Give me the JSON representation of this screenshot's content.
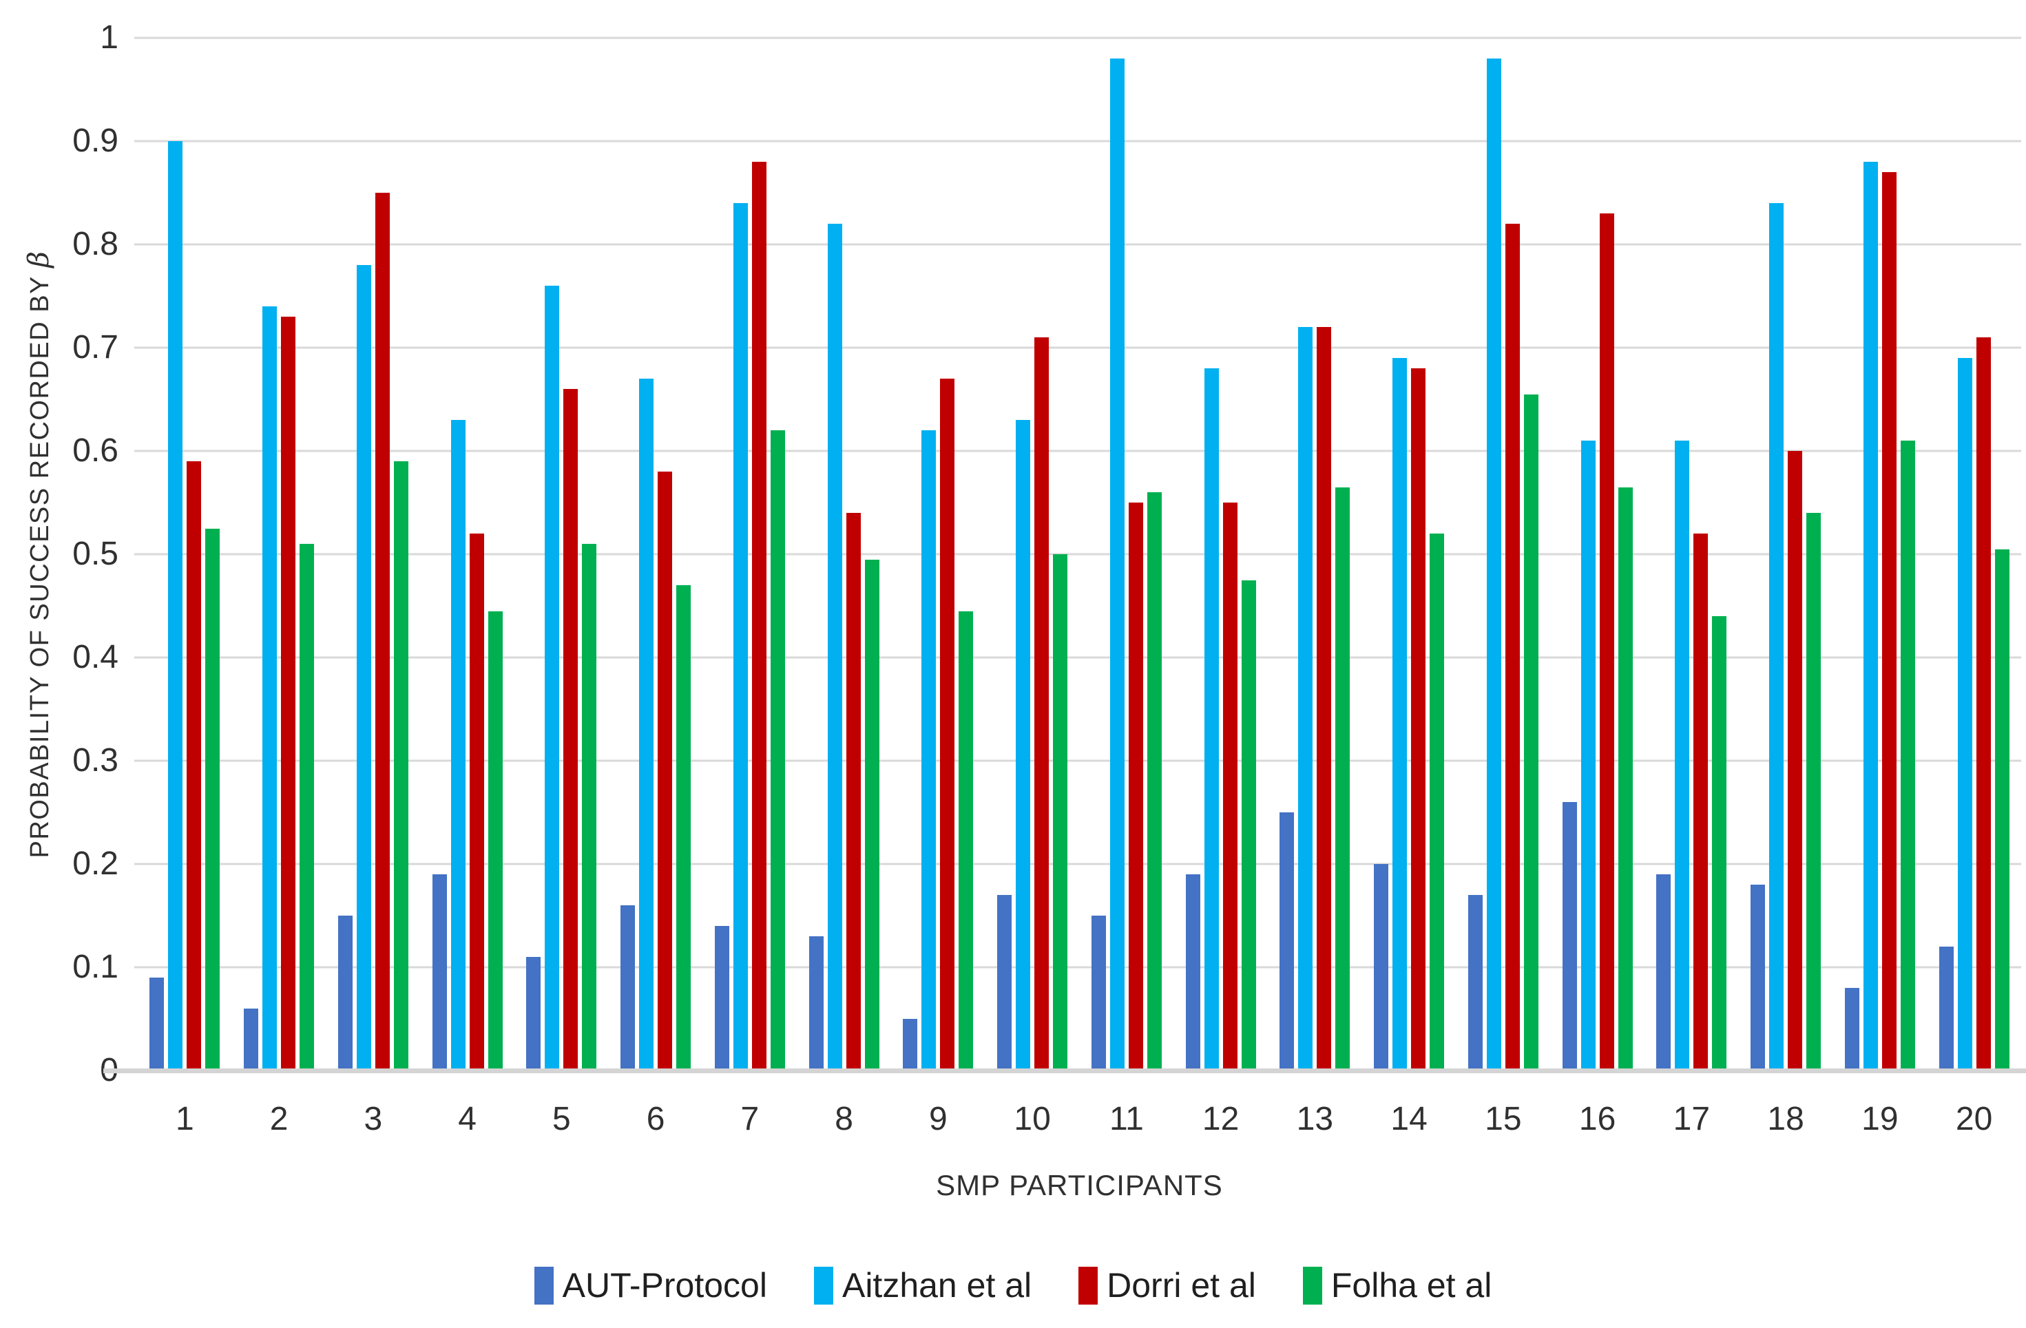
{
  "chart_data": {
    "type": "bar",
    "title": "",
    "xlabel": "SMP PARTICIPANTS",
    "ylabel": "PROBABILITY OF SUCCESS RECORDED BY β",
    "ylim": [
      0,
      1
    ],
    "ytick_step": 0.1,
    "ytick_labels": [
      "1",
      "0.9",
      "0.8",
      "0.7",
      "0.6",
      "0.5",
      "0.4",
      "0.3",
      "0.2",
      "0.1",
      "0"
    ],
    "grid": true,
    "gridline_color": "#D9D9D9",
    "legend_position": "bottom",
    "categories": [
      "1",
      "2",
      "3",
      "4",
      "5",
      "6",
      "7",
      "8",
      "9",
      "10",
      "11",
      "12",
      "13",
      "14",
      "15",
      "16",
      "17",
      "18",
      "19",
      "20"
    ],
    "series": [
      {
        "name": "AUT-Protocol",
        "color": "#4472C4",
        "values": [
          0.09,
          0.06,
          0.15,
          0.19,
          0.11,
          0.16,
          0.14,
          0.13,
          0.05,
          0.17,
          0.15,
          0.19,
          0.25,
          0.2,
          0.17,
          0.26,
          0.19,
          0.18,
          0.08,
          0.12
        ]
      },
      {
        "name": "Aitzhan et al",
        "color": "#00B0F0",
        "values": [
          0.9,
          0.74,
          0.78,
          0.63,
          0.76,
          0.67,
          0.84,
          0.82,
          0.62,
          0.63,
          0.98,
          0.68,
          0.72,
          0.69,
          0.98,
          0.61,
          0.61,
          0.84,
          0.88,
          0.69
        ]
      },
      {
        "name": "Dorri et al",
        "color": "#C00000",
        "values": [
          0.59,
          0.73,
          0.85,
          0.52,
          0.66,
          0.58,
          0.88,
          0.54,
          0.67,
          0.71,
          0.55,
          0.55,
          0.72,
          0.68,
          0.82,
          0.83,
          0.52,
          0.6,
          0.87,
          0.71
        ]
      },
      {
        "name": "Folha et al",
        "color": "#00B050",
        "values": [
          0.525,
          0.51,
          0.59,
          0.445,
          0.51,
          0.47,
          0.62,
          0.495,
          0.445,
          0.5,
          0.56,
          0.475,
          0.565,
          0.52,
          0.655,
          0.565,
          0.44,
          0.54,
          0.61,
          0.505
        ]
      }
    ]
  }
}
